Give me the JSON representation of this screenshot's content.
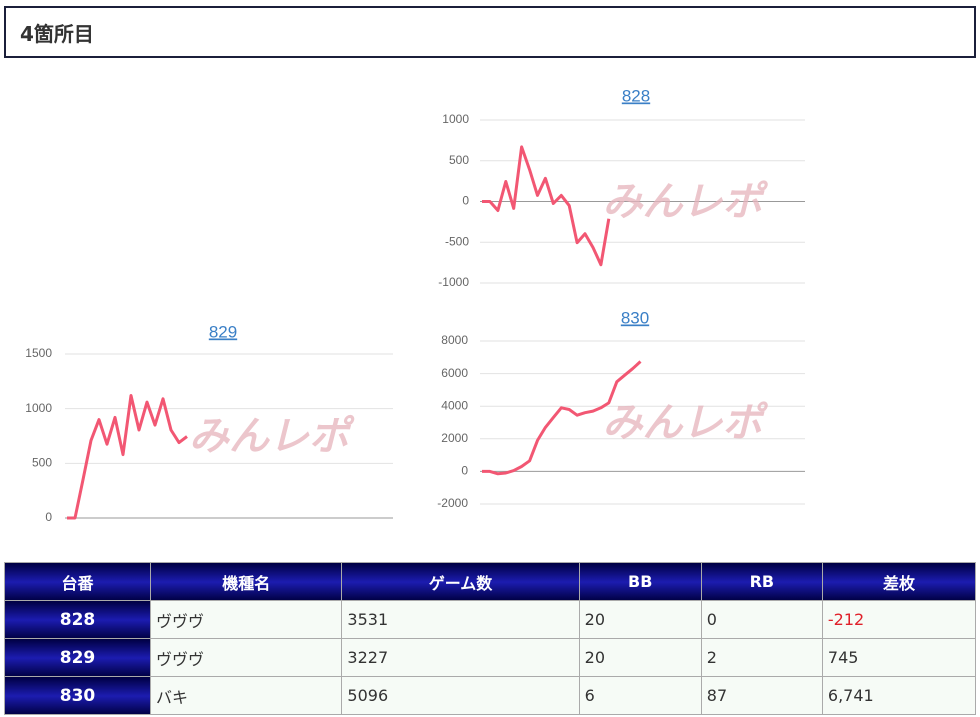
{
  "header": {
    "title": "4箇所目"
  },
  "chart_data": [
    {
      "type": "line",
      "title": "828",
      "watermark": "みんレポ",
      "color": "#f25773",
      "values": [
        0,
        0,
        -110,
        245,
        -85,
        670,
        390,
        75,
        285,
        -25,
        75,
        -50,
        -505,
        -395,
        -565,
        -775,
        -212
      ],
      "ylim": [
        -1000,
        1000
      ],
      "yticks": [
        -1000,
        -500,
        0,
        500,
        1000
      ],
      "grid": true
    },
    {
      "type": "line",
      "title": "829",
      "watermark": "みんレポ",
      "color": "#f25773",
      "values": [
        0,
        0,
        350,
        710,
        900,
        675,
        920,
        580,
        1120,
        805,
        1060,
        850,
        1090,
        805,
        690,
        745
      ],
      "ylim": [
        0,
        1500
      ],
      "yticks": [
        0,
        500,
        1000,
        1500
      ],
      "grid": true
    },
    {
      "type": "line",
      "title": "830",
      "watermark": "みんレポ",
      "color": "#f25773",
      "values": [
        0,
        0,
        -150,
        -100,
        50,
        300,
        650,
        1900,
        2700,
        3300,
        3900,
        3800,
        3450,
        3600,
        3700,
        3900,
        4200,
        5500,
        5900,
        6300,
        6741
      ],
      "ylim": [
        -2000,
        8000
      ],
      "yticks": [
        -2000,
        0,
        2000,
        4000,
        6000,
        8000
      ],
      "grid": true
    }
  ],
  "table": {
    "columns": [
      "台番",
      "機種名",
      "ゲーム数",
      "BB",
      "RB",
      "差枚"
    ],
    "rows": [
      [
        "828",
        "ヴヴヴ",
        "3531",
        "20",
        "0",
        "-212"
      ],
      [
        "829",
        "ヴヴヴ",
        "3227",
        "20",
        "2",
        "745"
      ],
      [
        "830",
        "バキ",
        "5096",
        "6",
        "87",
        "6,741"
      ]
    ]
  }
}
